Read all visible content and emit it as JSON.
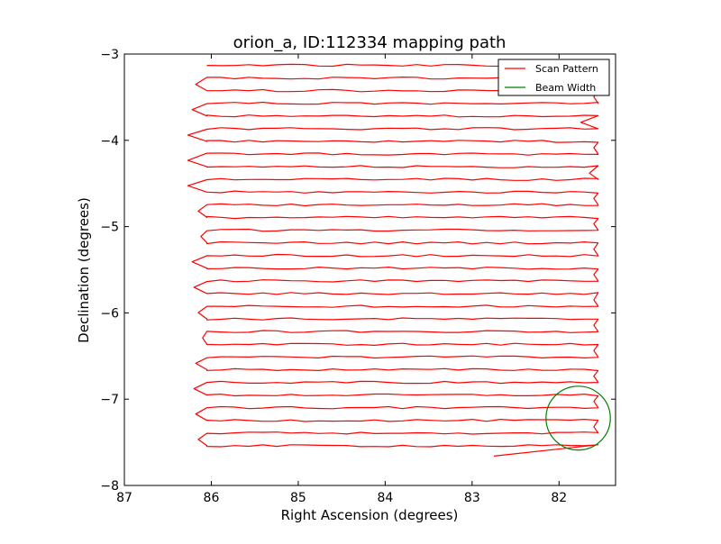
{
  "chart_data": {
    "type": "line",
    "title": "orion_a, ID:112334 mapping path",
    "xlabel": "Right Ascension (degrees)",
    "ylabel": "Declination (degrees)",
    "xlim": [
      87,
      81.35
    ],
    "ylim": [
      -8,
      -3
    ],
    "x_inverted": true,
    "xticks": [
      87,
      86,
      85,
      84,
      83,
      82
    ],
    "yticks": [
      -3,
      -4,
      -5,
      -6,
      -7,
      -8
    ],
    "xtick_labels": [
      "87",
      "86",
      "85",
      "84",
      "83",
      "82"
    ],
    "ytick_labels": [
      "−3",
      "−4",
      "−5",
      "−6",
      "−7",
      "−8"
    ],
    "legend": {
      "placement": "top-right",
      "entries": [
        {
          "label": "Scan Pattern",
          "color": "#ff0000"
        },
        {
          "label": "Beam Width",
          "color": "#008000"
        }
      ]
    },
    "series": [
      {
        "name": "Scan Pattern",
        "color": "#ff0000",
        "scan_rows": {
          "dec_start": -3.13,
          "dec_step": -0.147,
          "count": 31,
          "ra_left": 86.05,
          "ra_right": 81.55,
          "left_turn_ra": [
            86.05,
            86.18,
            86.18,
            86.22,
            86.05,
            86.27,
            86.05,
            86.27,
            86.05,
            86.27,
            86.05,
            86.15,
            86.05,
            86.12,
            86.05,
            86.22,
            86.05,
            86.2,
            86.05,
            86.15,
            86.05,
            86.1,
            86.05,
            86.18,
            86.05,
            86.2,
            86.05,
            86.18,
            86.05,
            86.15,
            86.05
          ],
          "right_turn_ra": [
            81.75,
            81.55,
            81.6,
            81.4,
            81.75,
            81.38,
            81.6,
            81.4,
            81.65,
            81.45,
            81.6,
            81.5,
            81.6,
            81.5,
            81.6,
            81.5,
            81.6,
            81.48,
            81.6,
            81.45,
            81.6,
            81.5,
            81.6,
            81.45,
            81.6,
            81.5,
            81.6,
            81.5,
            81.6,
            81.45,
            81.6
          ]
        },
        "end_point": {
          "ra": 82.75,
          "dec": -7.66
        }
      },
      {
        "name": "Beam Width",
        "color": "#008000",
        "circle": {
          "ra": 81.78,
          "dec": -7.22,
          "radius_deg": 0.37
        }
      }
    ],
    "grid": false
  }
}
